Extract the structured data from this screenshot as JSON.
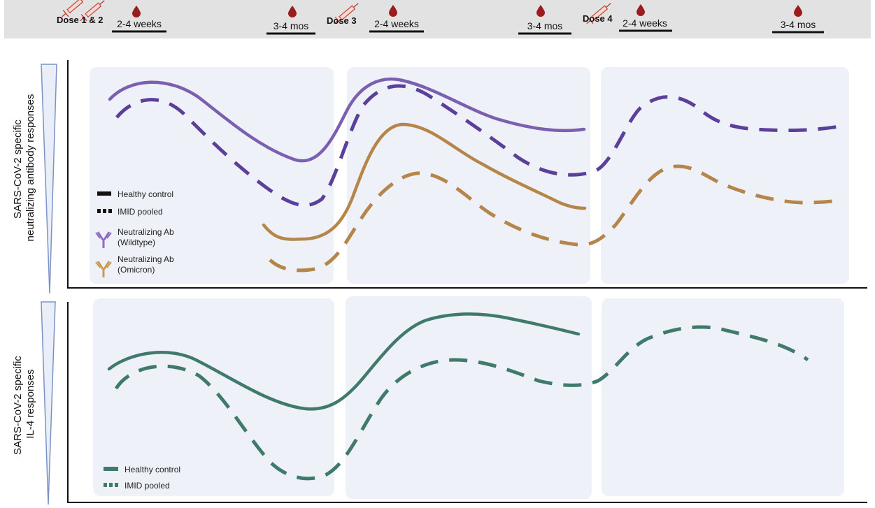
{
  "timeline": {
    "dose_labels": [
      "Dose 1 & 2",
      "Dose 3",
      "Dose 4"
    ],
    "interval_labels": [
      "2-4 weeks",
      "3-4 mos",
      "2-4 weeks",
      "3-4 mos",
      "2-4 weeks",
      "3-4 mos"
    ],
    "blood_draw_icon": "blood-drop-icon",
    "syringe_icon": "syringe-icon"
  },
  "panels": {
    "top": {
      "ylabel_line1": "SARS-CoV-2 specific",
      "ylabel_line2": "neutralizing antibody responses",
      "legend": {
        "healthy": "Healthy control",
        "imid": "IMID pooled",
        "wt_line1": "Neutralizing Ab",
        "wt_line2": "(Wildtype)",
        "om_line1": "Neutralizing Ab",
        "om_line2": "(Omicron)"
      }
    },
    "bottom": {
      "ylabel_line1": "SARS-CoV-2 specific",
      "ylabel_line2": "IL-4 responses",
      "legend": {
        "healthy": "Healthy control",
        "imid": "IMID pooled"
      }
    }
  },
  "colors": {
    "wildtype": "#7b5fb0",
    "wildtype_dashed": "#5b3f9a",
    "omicron": "#b5854a",
    "il4": "#3f7a6c",
    "panel_bg": "#eef2f8",
    "topbar": "#e2e2e2",
    "blood": "#9b1c1c",
    "wedge": "#7b93c4"
  }
}
